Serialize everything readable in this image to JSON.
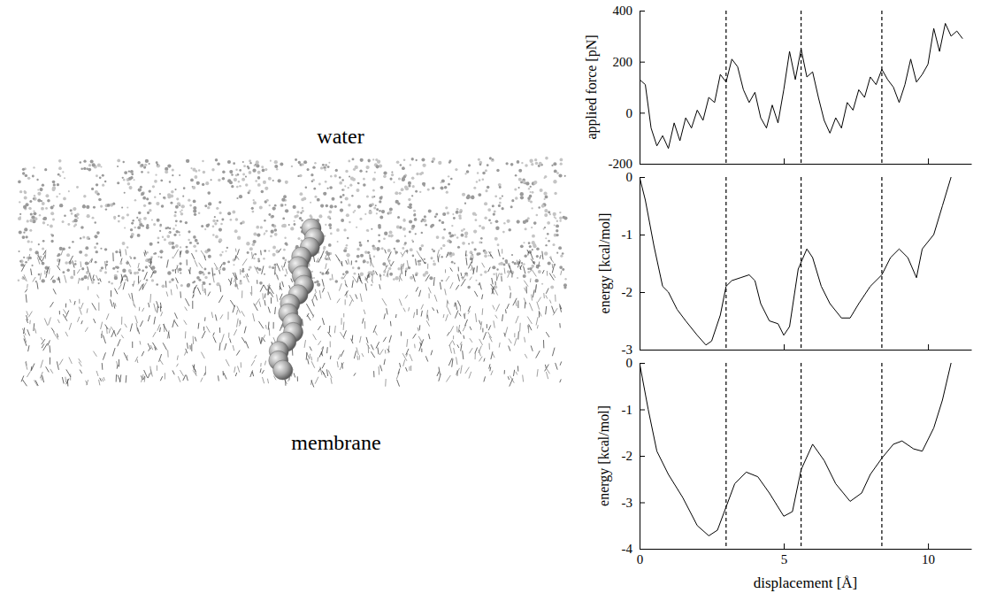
{
  "chart_data": [
    {
      "type": "line",
      "ylabel": "applied force [pN]",
      "color": "#000000",
      "line_style": "solid",
      "x": [
        0,
        0.2,
        0.4,
        0.6,
        0.8,
        1.0,
        1.2,
        1.4,
        1.6,
        1.8,
        2.0,
        2.2,
        2.4,
        2.6,
        2.8,
        3.0,
        3.2,
        3.4,
        3.6,
        3.8,
        4.0,
        4.2,
        4.4,
        4.6,
        4.8,
        5.0,
        5.2,
        5.4,
        5.6,
        5.8,
        6.0,
        6.2,
        6.4,
        6.6,
        6.8,
        7.0,
        7.2,
        7.4,
        7.6,
        7.8,
        8.0,
        8.2,
        8.4,
        8.6,
        8.8,
        9.0,
        9.2,
        9.4,
        9.6,
        9.8,
        10.0,
        10.2,
        10.4,
        10.6,
        10.8,
        11.0,
        11.2
      ],
      "values": [
        130,
        110,
        -60,
        -130,
        -90,
        -140,
        -40,
        -110,
        -20,
        -60,
        10,
        -30,
        60,
        40,
        150,
        120,
        210,
        180,
        90,
        40,
        80,
        -20,
        -60,
        30,
        -40,
        90,
        240,
        130,
        250,
        140,
        160,
        60,
        -30,
        -80,
        -20,
        -60,
        40,
        10,
        90,
        60,
        140,
        110,
        170,
        130,
        100,
        40,
        110,
        210,
        120,
        150,
        190,
        330,
        240,
        350,
        300,
        320,
        290
      ],
      "xlim": [
        0,
        11.5
      ],
      "xticks": [
        0,
        5,
        10
      ],
      "ylim": [
        -200,
        400
      ],
      "yticks": [
        -200,
        0,
        200,
        400
      ],
      "tick_labels": "y",
      "vlines": [
        3.0,
        5.6,
        8.4
      ]
    },
    {
      "type": "line",
      "ylabel": "energy [kcal/mol]",
      "color": "#000000",
      "line_style": "solid",
      "x": [
        0,
        0.2,
        0.5,
        0.8,
        1.0,
        1.3,
        1.6,
        2.0,
        2.3,
        2.5,
        2.8,
        3.0,
        3.2,
        3.5,
        3.8,
        4.0,
        4.2,
        4.5,
        4.8,
        5.0,
        5.2,
        5.5,
        5.8,
        6.0,
        6.3,
        6.6,
        7.0,
        7.3,
        7.6,
        8.0,
        8.4,
        8.7,
        9.0,
        9.3,
        9.6,
        9.8,
        10.2,
        10.5,
        10.8
      ],
      "values": [
        0,
        -0.4,
        -1.2,
        -1.9,
        -2.0,
        -2.3,
        -2.5,
        -2.75,
        -2.92,
        -2.85,
        -2.4,
        -1.9,
        -1.8,
        -1.75,
        -1.7,
        -1.8,
        -2.2,
        -2.5,
        -2.55,
        -2.75,
        -2.6,
        -1.6,
        -1.25,
        -1.4,
        -1.9,
        -2.2,
        -2.45,
        -2.45,
        -2.2,
        -1.9,
        -1.7,
        -1.4,
        -1.25,
        -1.4,
        -1.75,
        -1.25,
        -1.0,
        -0.5,
        0
      ],
      "xlim": [
        0,
        11.5
      ],
      "xticks": [
        0,
        5,
        10
      ],
      "ylim": [
        -3,
        0
      ],
      "yticks": [
        -3,
        -2,
        -1,
        0
      ],
      "tick_labels": "y",
      "vlines": [
        3.0,
        5.6,
        8.4
      ]
    },
    {
      "type": "line",
      "ylabel": "energy [kcal/mol]",
      "xlabel": "displacement [Å]",
      "color": "#000000",
      "line_style": "solid",
      "x": [
        0,
        0.3,
        0.6,
        1.0,
        1.5,
        2.0,
        2.4,
        2.7,
        3.0,
        3.3,
        3.7,
        4.1,
        4.5,
        5.0,
        5.3,
        5.6,
        6.0,
        6.4,
        6.8,
        7.3,
        7.7,
        8.0,
        8.4,
        8.8,
        9.1,
        9.5,
        9.8,
        10.2,
        10.5,
        10.8
      ],
      "values": [
        0,
        -1.0,
        -1.9,
        -2.4,
        -2.9,
        -3.5,
        -3.72,
        -3.6,
        -3.1,
        -2.6,
        -2.35,
        -2.45,
        -2.8,
        -3.3,
        -3.2,
        -2.3,
        -1.75,
        -2.1,
        -2.6,
        -2.98,
        -2.8,
        -2.4,
        -2.05,
        -1.75,
        -1.68,
        -1.85,
        -1.9,
        -1.4,
        -0.8,
        0
      ],
      "xlim": [
        0,
        11.5
      ],
      "xticks": [
        0,
        5,
        10
      ],
      "ylim": [
        -4,
        0
      ],
      "yticks": [
        -4,
        -3,
        -2,
        -1,
        0
      ],
      "vlines": [
        3.0,
        5.6,
        8.4
      ]
    }
  ],
  "illustration": {
    "labels": [
      "water",
      "membrane"
    ]
  }
}
